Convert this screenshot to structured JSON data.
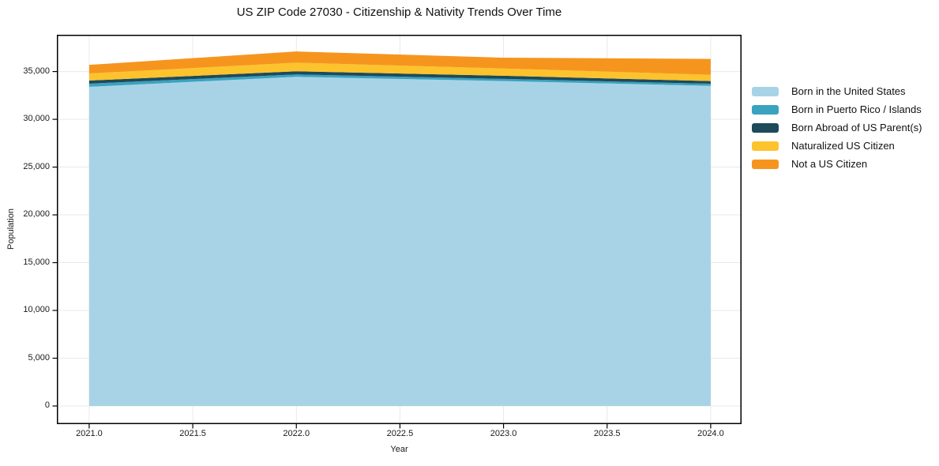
{
  "figure": {
    "background": "#ffffff",
    "text_color": "#1a1a1a",
    "grid_color": "#e9e9e9",
    "spine_color": "#000000"
  },
  "chart_data": {
    "type": "area",
    "stacked": true,
    "title": "US ZIP Code 27030 - Citizenship & Nativity Trends Over Time",
    "xlabel": "Year",
    "ylabel": "Population",
    "x": [
      2021,
      2022,
      2023,
      2024
    ],
    "series": [
      {
        "name": "Born in the United States",
        "color": "#a8d3e6",
        "values": [
          33400,
          34450,
          34000,
          33500
        ]
      },
      {
        "name": "Born in Puerto Rico / Islands",
        "color": "#39a3c0",
        "values": [
          330,
          250,
          230,
          220
        ]
      },
      {
        "name": "Born Abroad of US Parent(s)",
        "color": "#1e4a5a",
        "values": [
          330,
          330,
          330,
          280
        ]
      },
      {
        "name": "Naturalized US Citizen",
        "color": "#fcc32d",
        "values": [
          740,
          900,
          760,
          660
        ]
      },
      {
        "name": "Not a US Citizen",
        "color": "#f6951e",
        "values": [
          900,
          1170,
          1130,
          1660
        ]
      }
    ],
    "totals": [
      35700,
      37100,
      36450,
      36320
    ],
    "xticks": {
      "values": [
        2021.0,
        2021.5,
        2022.0,
        2022.5,
        2023.0,
        2023.5,
        2024.0
      ],
      "labels": [
        "2021.0",
        "2021.5",
        "2022.0",
        "2022.5",
        "2023.0",
        "2023.5",
        "2024.0"
      ]
    },
    "yticks": {
      "values": [
        0,
        5000,
        10000,
        15000,
        20000,
        25000,
        30000,
        35000
      ],
      "labels": [
        "0",
        "5,000",
        "10,000",
        "15,000",
        "20,000",
        "25,000",
        "30,000",
        "35,000"
      ]
    },
    "xlim": [
      2020.844,
      2024.149
    ],
    "ylim": [
      -1900,
      38850
    ],
    "grid": true,
    "legend_position": "right-outside"
  }
}
